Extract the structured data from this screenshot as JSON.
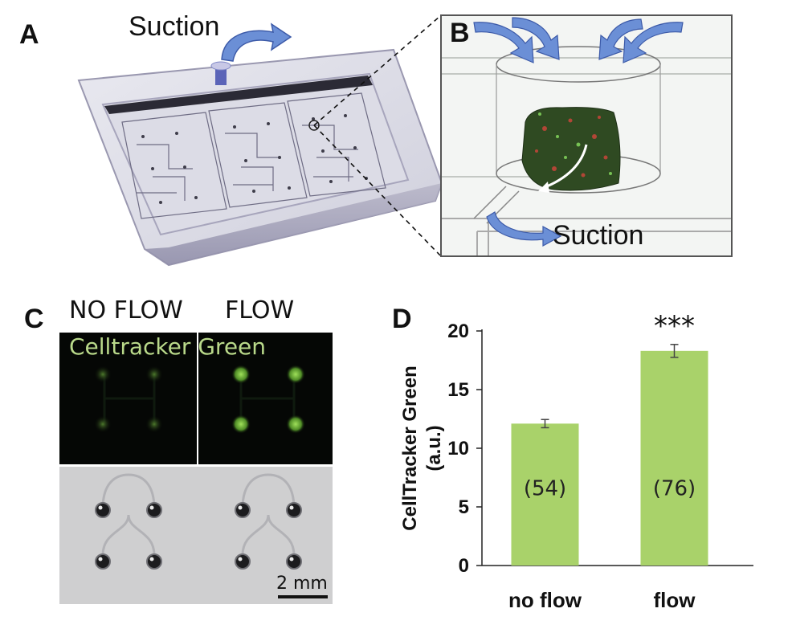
{
  "figure": {
    "panels": {
      "a": {
        "letter": "A",
        "suction_label": "Suction"
      },
      "b": {
        "letter": "B",
        "suction_label": "Suction"
      },
      "c": {
        "letter": "C",
        "col_left": "NO FLOW",
        "col_right": "FLOW",
        "stain_label": "Celltracker Green",
        "scale_bar": "2 mm"
      },
      "d": {
        "letter": "D"
      }
    }
  },
  "colors": {
    "bar": "#a9d26a",
    "arrow": "#6b8fd6",
    "overlay_text": "#b9d98a"
  },
  "chart_data": {
    "type": "bar",
    "categories": [
      "no flow",
      "flow"
    ],
    "values": [
      12.1,
      18.3
    ],
    "errors": [
      0.35,
      0.55
    ],
    "n_labels": [
      "(54)",
      "(76)"
    ],
    "significance": [
      "",
      "***"
    ],
    "title": "",
    "xlabel": "",
    "ylabel": "CellTracker Green\n(a.u.)",
    "ylabel_lines": [
      "CellTracker Green",
      "(a.u.)"
    ],
    "ylim": [
      0,
      20
    ],
    "yticks": [
      0,
      5,
      10,
      15,
      20
    ],
    "grid": false
  }
}
